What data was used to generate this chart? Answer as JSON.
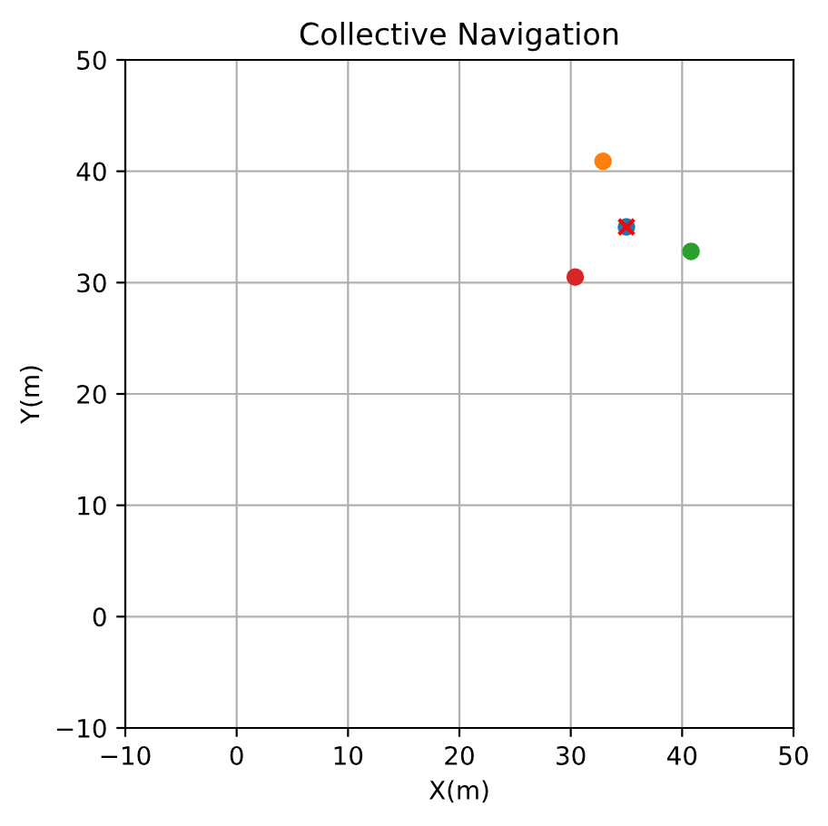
{
  "chart_data": {
    "type": "scatter",
    "title": "Collective Navigation",
    "xlabel": "X(m)",
    "ylabel": "Y(m)",
    "xlim": [
      -10,
      50
    ],
    "ylim": [
      -10,
      50
    ],
    "xticks": [
      -10,
      0,
      10,
      20,
      30,
      40,
      50
    ],
    "yticks": [
      -10,
      0,
      10,
      20,
      30,
      40,
      50
    ],
    "grid": true,
    "marker": "circle",
    "series": [
      {
        "color": "#1f77b4",
        "x": [
          35
        ],
        "values": [
          35
        ]
      },
      {
        "color": "#ff7f0e",
        "x": [
          32.9
        ],
        "values": [
          40.9
        ]
      },
      {
        "color": "#2ca02c",
        "x": [
          40.8
        ],
        "values": [
          32.8
        ]
      },
      {
        "color": "#d62728",
        "x": [
          30.4
        ],
        "values": [
          30.5
        ]
      },
      {
        "color": "#ff0000",
        "x": [
          35
        ],
        "values": [
          35
        ],
        "marker": "cross"
      }
    ]
  }
}
